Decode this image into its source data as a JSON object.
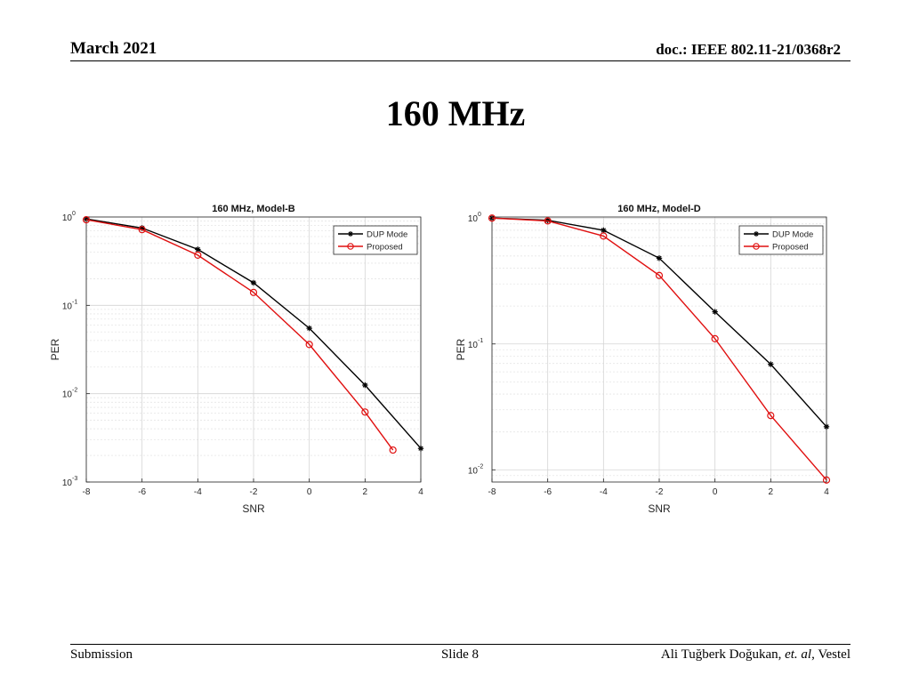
{
  "header": {
    "date": "March 2021",
    "doc": "doc.: IEEE 802.11-21/0368r2"
  },
  "slide": {
    "title": "160 MHz"
  },
  "footer": {
    "left": "Submission",
    "center": "Slide 8",
    "author_name": "Ali Tuğberk Doğukan, ",
    "author_etal": "et. al",
    "author_org": ", Vestel"
  },
  "chart_data": [
    {
      "type": "line",
      "title": "160 MHz, Model-B",
      "xlabel": "SNR",
      "ylabel": "PER",
      "xlim": [
        -8,
        4
      ],
      "ylim": [
        0.001,
        1
      ],
      "yscale": "log",
      "xticks": [
        -8,
        -6,
        -4,
        -2,
        0,
        2,
        4
      ],
      "yticks": [
        0.001,
        0.01,
        0.1,
        1
      ],
      "ytick_labels": [
        {
          "base": "10",
          "exp": "-3"
        },
        {
          "base": "10",
          "exp": "-2"
        },
        {
          "base": "10",
          "exp": "-1"
        },
        {
          "base": "10",
          "exp": "0"
        }
      ],
      "grid": true,
      "legend": "top-right",
      "series": [
        {
          "name": "DUP Mode",
          "color": "#000000",
          "marker": "asterisk",
          "x": [
            -8,
            -6,
            -4,
            -2,
            0,
            2,
            4
          ],
          "y": [
            0.95,
            0.75,
            0.43,
            0.18,
            0.055,
            0.0125,
            0.0024
          ]
        },
        {
          "name": "Proposed",
          "color": "#e01010",
          "marker": "circle",
          "x": [
            -8,
            -6,
            -4,
            -2,
            0,
            2,
            3
          ],
          "y": [
            0.93,
            0.72,
            0.37,
            0.14,
            0.036,
            0.0062,
            0.0023
          ]
        }
      ]
    },
    {
      "type": "line",
      "title": "160 MHz, Model-D",
      "xlabel": "SNR",
      "ylabel": "PER",
      "xlim": [
        -8,
        4
      ],
      "ylim": [
        0.008,
        1.02
      ],
      "yscale": "log",
      "xticks": [
        -8,
        -6,
        -4,
        -2,
        0,
        2,
        4
      ],
      "yticks": [
        0.01,
        0.1,
        1
      ],
      "ytick_labels": [
        {
          "base": "10",
          "exp": "-2"
        },
        {
          "base": "10",
          "exp": "-1"
        },
        {
          "base": "10",
          "exp": "0"
        }
      ],
      "grid": true,
      "legend": "top-right",
      "series": [
        {
          "name": "DUP Mode",
          "color": "#000000",
          "marker": "asterisk",
          "x": [
            -8,
            -6,
            -4,
            -2,
            0,
            2,
            4
          ],
          "y": [
            1.0,
            0.96,
            0.8,
            0.48,
            0.18,
            0.069,
            0.022
          ]
        },
        {
          "name": "Proposed",
          "color": "#e01010",
          "marker": "circle",
          "x": [
            -8,
            -6,
            -4,
            -2,
            0,
            2,
            4
          ],
          "y": [
            1.0,
            0.95,
            0.72,
            0.35,
            0.11,
            0.027,
            0.0083
          ]
        }
      ]
    }
  ]
}
